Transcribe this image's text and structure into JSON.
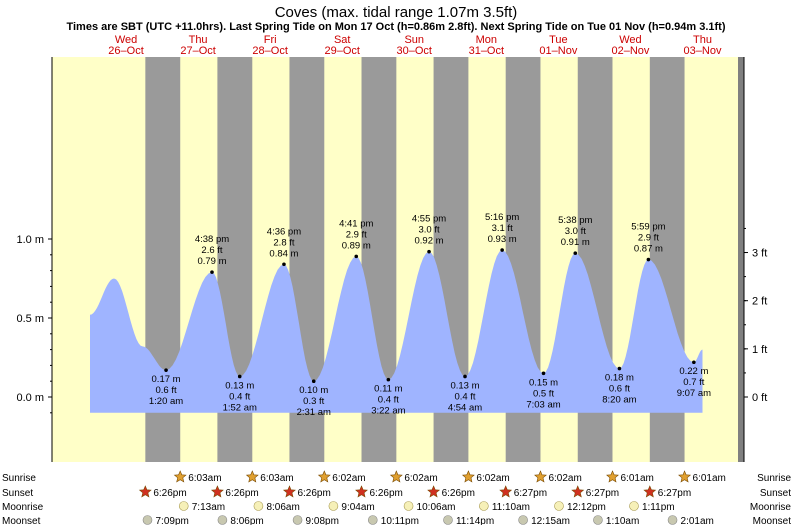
{
  "title": "Coves (max. tidal range 1.07m 3.5ft)",
  "subtitle": "Times are SBT (UTC +11.0hrs). Last Spring Tide on Mon 17 Oct (h=0.86m 2.8ft). Next Spring Tide on Tue 01 Nov (h=0.94m 3.1ft)",
  "days": [
    {
      "dow": "Wed",
      "date": "26–Oct"
    },
    {
      "dow": "Thu",
      "date": "27–Oct"
    },
    {
      "dow": "Fri",
      "date": "28–Oct"
    },
    {
      "dow": "Sat",
      "date": "29–Oct"
    },
    {
      "dow": "Sun",
      "date": "30–Oct"
    },
    {
      "dow": "Mon",
      "date": "31–Oct"
    },
    {
      "dow": "Tue",
      "date": "01–Nov"
    },
    {
      "dow": "Wed",
      "date": "02–Nov"
    },
    {
      "dow": "Thu",
      "date": "03–Nov"
    }
  ],
  "colors": {
    "day": "#ffffc8",
    "night": "#9a9a9a",
    "water": "#9fb4ff",
    "daylabel": "#cc0000",
    "sunrise": "#e0a030",
    "sunset": "#d03020",
    "moon": "#f6f0b8",
    "moonset": "#c8c8b0"
  },
  "chart_data": {
    "type": "area",
    "x_unit": "hours after 00:00 Wed 26-Oct (SBT)",
    "ylim_m": [
      -0.2,
      1.1
    ],
    "y_ticks_m": [
      {
        "v": 0.0,
        "label": "0.0 m"
      },
      {
        "v": 0.5,
        "label": "0.5 m"
      },
      {
        "v": 1.0,
        "label": "1.0 m"
      }
    ],
    "y_ticks_ft": [
      {
        "v": 0,
        "label": "0 ft"
      },
      {
        "v": 1,
        "label": "1 ft"
      },
      {
        "v": 2,
        "label": "2 ft"
      },
      {
        "v": 3,
        "label": "3 ft"
      }
    ],
    "x_range_h": [
      -12,
      216
    ],
    "data_range_h": [
      0,
      204
    ],
    "extra_peaks": [
      {
        "t": 8.0,
        "h": 0.75
      }
    ],
    "extremes": [
      {
        "t": 25.33,
        "m": "0.17 m",
        "ft": "0.6 ft",
        "time": "1:20 am",
        "type": "low",
        "h": 0.17
      },
      {
        "t": 40.63,
        "m": "0.79 m",
        "ft": "2.6 ft",
        "time": "4:38 pm",
        "type": "high",
        "h": 0.79
      },
      {
        "t": 49.87,
        "m": "0.13 m",
        "ft": "0.4 ft",
        "time": "1:52 am",
        "type": "low",
        "h": 0.13
      },
      {
        "t": 64.6,
        "m": "0.84 m",
        "ft": "2.8 ft",
        "time": "4:36 pm",
        "type": "high",
        "h": 0.84
      },
      {
        "t": 74.52,
        "m": "0.10 m",
        "ft": "0.3 ft",
        "time": "2:31 am",
        "type": "low",
        "h": 0.1
      },
      {
        "t": 88.68,
        "m": "0.89 m",
        "ft": "2.9 ft",
        "time": "4:41 pm",
        "type": "high",
        "h": 0.89
      },
      {
        "t": 99.37,
        "m": "0.11 m",
        "ft": "0.4 ft",
        "time": "3:22 am",
        "type": "low",
        "h": 0.11
      },
      {
        "t": 112.92,
        "m": "0.92 m",
        "ft": "3.0 ft",
        "time": "4:55 pm",
        "type": "high",
        "h": 0.92
      },
      {
        "t": 124.9,
        "m": "0.13 m",
        "ft": "0.4 ft",
        "time": "4:54 am",
        "type": "low",
        "h": 0.13
      },
      {
        "t": 137.27,
        "m": "0.93 m",
        "ft": "3.1 ft",
        "time": "5:16 pm",
        "type": "high",
        "h": 0.93
      },
      {
        "t": 151.05,
        "m": "0.15 m",
        "ft": "0.5 ft",
        "time": "7:03 am",
        "type": "low",
        "h": 0.15
      },
      {
        "t": 161.63,
        "m": "0.91 m",
        "ft": "3.0 ft",
        "time": "5:38 pm",
        "type": "high",
        "h": 0.91
      },
      {
        "t": 176.33,
        "m": "0.18 m",
        "ft": "0.6 ft",
        "time": "8:20 am",
        "type": "low",
        "h": 0.18
      },
      {
        "t": 185.98,
        "m": "0.87 m",
        "ft": "2.9 ft",
        "time": "5:59 pm",
        "type": "high",
        "h": 0.87
      },
      {
        "t": 201.12,
        "m": "0.22 m",
        "ft": "0.7 ft",
        "time": "9:07 am",
        "type": "low",
        "h": 0.22
      }
    ],
    "sun": [
      {
        "rise_t": 30.05,
        "rise": "6:03am",
        "set_t": 42.43,
        "set": "6:26pm"
      },
      {
        "rise_t": 54.05,
        "rise": "6:03am",
        "set_t": 66.43,
        "set": "6:26pm"
      },
      {
        "rise_t": 78.03,
        "rise": "6:02am",
        "set_t": 90.43,
        "set": "6:26pm"
      },
      {
        "rise_t": 102.03,
        "rise": "6:02am",
        "set_t": 114.43,
        "set": "6:26pm"
      },
      {
        "rise_t": 126.03,
        "rise": "6:02am",
        "set_t": 138.45,
        "set": "6:27pm"
      },
      {
        "rise_t": 150.03,
        "rise": "6:02am",
        "set_t": 162.45,
        "set": "6:27pm"
      },
      {
        "rise_t": 174.02,
        "rise": "6:01am",
        "set_t": 186.45,
        "set": "6:27pm"
      },
      {
        "rise_t": 198.02,
        "rise": "6:01am",
        "set_t": null,
        "set": null
      }
    ],
    "first_sunset": {
      "t": 18.43,
      "label": "6:26pm"
    },
    "moonrise": [
      {
        "t": 31.22,
        "label": "7:13am"
      },
      {
        "t": 56.1,
        "label": "8:06am"
      },
      {
        "t": 81.07,
        "label": "9:04am"
      },
      {
        "t": 106.1,
        "label": "10:06am"
      },
      {
        "t": 131.17,
        "label": "11:10am"
      },
      {
        "t": 156.2,
        "label": "12:12pm"
      },
      {
        "t": 181.18,
        "label": "1:11pm"
      }
    ],
    "moonset": [
      {
        "t": 19.15,
        "label": "7:09pm"
      },
      {
        "t": 44.1,
        "label": "8:06pm"
      },
      {
        "t": 69.13,
        "label": "9:08pm"
      },
      {
        "t": 94.18,
        "label": "10:11pm"
      },
      {
        "t": 119.23,
        "label": "11:14pm"
      },
      {
        "t": 144.25,
        "label": "12:15am"
      },
      {
        "t": 169.17,
        "label": "1:10am"
      },
      {
        "t": 194.02,
        "label": "2:01am"
      }
    ],
    "row_labels": [
      "Sunrise",
      "Sunset",
      "Moonrise",
      "Moonset"
    ]
  }
}
